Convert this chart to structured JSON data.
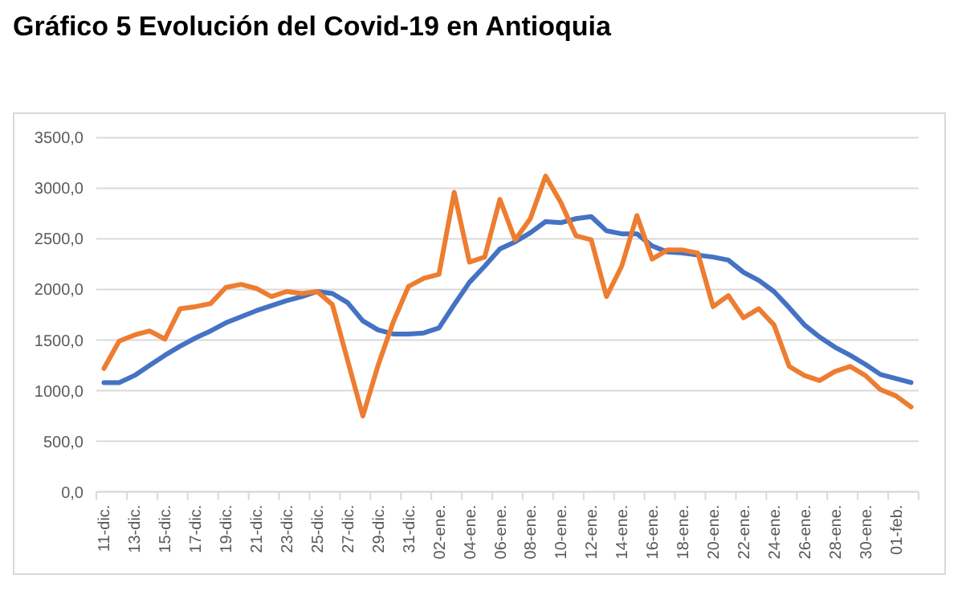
{
  "chart_data": {
    "type": "line",
    "title": "Gráfico 5 Evolución del Covid-19 en Antioquia",
    "categories": [
      "11-dic.",
      null,
      "13-dic.",
      null,
      "15-dic.",
      null,
      "17-dic.",
      null,
      "19-dic.",
      null,
      "21-dic.",
      null,
      "23-dic.",
      null,
      "25-dic.",
      null,
      "27-dic.",
      null,
      "29-dic.",
      null,
      "31-dic.",
      null,
      "02-ene.",
      null,
      "04-ene.",
      null,
      "06-ene.",
      null,
      "08-ene.",
      null,
      "10-ene.",
      null,
      "12-ene.",
      null,
      "14-ene.",
      null,
      "16-ene.",
      null,
      "18-ene.",
      null,
      "20-ene.",
      null,
      "22-ene.",
      null,
      "24-ene.",
      null,
      "26-ene.",
      null,
      "28-ene.",
      null,
      "30-ene.",
      null,
      "01-feb.",
      null
    ],
    "series": [
      {
        "color": "#4472c4",
        "values": [
          1080,
          1080,
          1150,
          1250,
          1350,
          1440,
          1520,
          1590,
          1670,
          1730,
          1790,
          1840,
          1890,
          1930,
          1980,
          1960,
          1870,
          1690,
          1600,
          1560,
          1560,
          1570,
          1620,
          1850,
          2070,
          2230,
          2400,
          2470,
          2560,
          2670,
          2660,
          2700,
          2720,
          2580,
          2550,
          2550,
          2430,
          2370,
          2360,
          2340,
          2320,
          2290,
          2170,
          2090,
          1980,
          1820,
          1650,
          1530,
          1430,
          1350,
          1260,
          1160,
          1120,
          1080
        ]
      },
      {
        "color": "#ed7d31",
        "values": [
          1220,
          1490,
          1550,
          1590,
          1510,
          1810,
          1830,
          1860,
          2020,
          2050,
          2010,
          1930,
          1980,
          1960,
          1980,
          1850,
          1300,
          750,
          1250,
          1680,
          2030,
          2110,
          2150,
          2960,
          2270,
          2320,
          2890,
          2490,
          2700,
          3120,
          2860,
          2530,
          2490,
          1930,
          2230,
          2730,
          2300,
          2390,
          2390,
          2360,
          1830,
          1940,
          1720,
          1810,
          1650,
          1240,
          1150,
          1100,
          1190,
          1240,
          1150,
          1010,
          950,
          840
        ]
      }
    ],
    "ylim": [
      0,
      3500
    ],
    "yticks": [
      {
        "value": 0,
        "label": "0,0"
      },
      {
        "value": 500,
        "label": "500,0"
      },
      {
        "value": 1000,
        "label": "1000,0"
      },
      {
        "value": 1500,
        "label": "1500,0"
      },
      {
        "value": 2000,
        "label": "2000,0"
      },
      {
        "value": 2500,
        "label": "2500,0"
      },
      {
        "value": 3000,
        "label": "3000,0"
      },
      {
        "value": 3500,
        "label": "3500,0"
      }
    ],
    "grid": "y",
    "marker": "none",
    "line_style": "solid"
  }
}
